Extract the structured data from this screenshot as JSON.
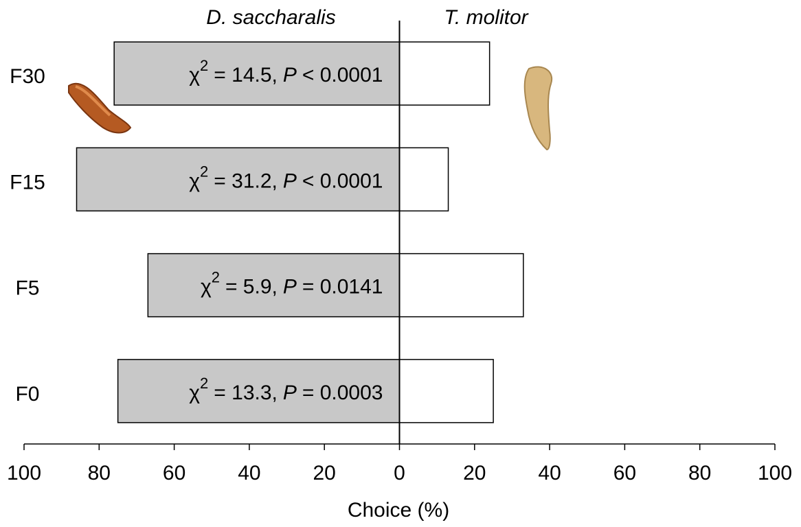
{
  "chart_data": {
    "type": "diverging-bar",
    "xlabel": "Choice (%)",
    "categories": [
      "F0",
      "F5",
      "F15",
      "F30"
    ],
    "series": [
      {
        "name": "D. saccharalis",
        "color": "#c8c8c8",
        "values": [
          -75,
          -67,
          -86,
          -76
        ]
      },
      {
        "name": "T. molitor",
        "color": "#ffffff",
        "values": [
          25,
          33,
          13,
          24
        ]
      }
    ],
    "annotations": [
      {
        "stat": "χ",
        "power": "2",
        "value": "= 13.3,",
        "p": "P",
        "p_value": "= 0.0003"
      },
      {
        "stat": "χ",
        "power": "2",
        "value": "= 5.9,",
        "p": "P",
        "p_value": "= 0.0141"
      },
      {
        "stat": "χ",
        "power": "2",
        "value": "= 31.2,",
        "p": "P",
        "p_value": "< 0.0001"
      },
      {
        "stat": "χ",
        "power": "2",
        "value": "= 14.5,",
        "p": "P",
        "p_value": "< 0.0001"
      }
    ],
    "xlim": [
      -100,
      100
    ],
    "xticks": [
      {
        "value": -100,
        "label": "100"
      },
      {
        "value": -80,
        "label": "80"
      },
      {
        "value": -60,
        "label": "60"
      },
      {
        "value": -40,
        "label": "40"
      },
      {
        "value": -20,
        "label": "20"
      },
      0,
      20,
      40,
      60,
      80,
      100
    ]
  }
}
